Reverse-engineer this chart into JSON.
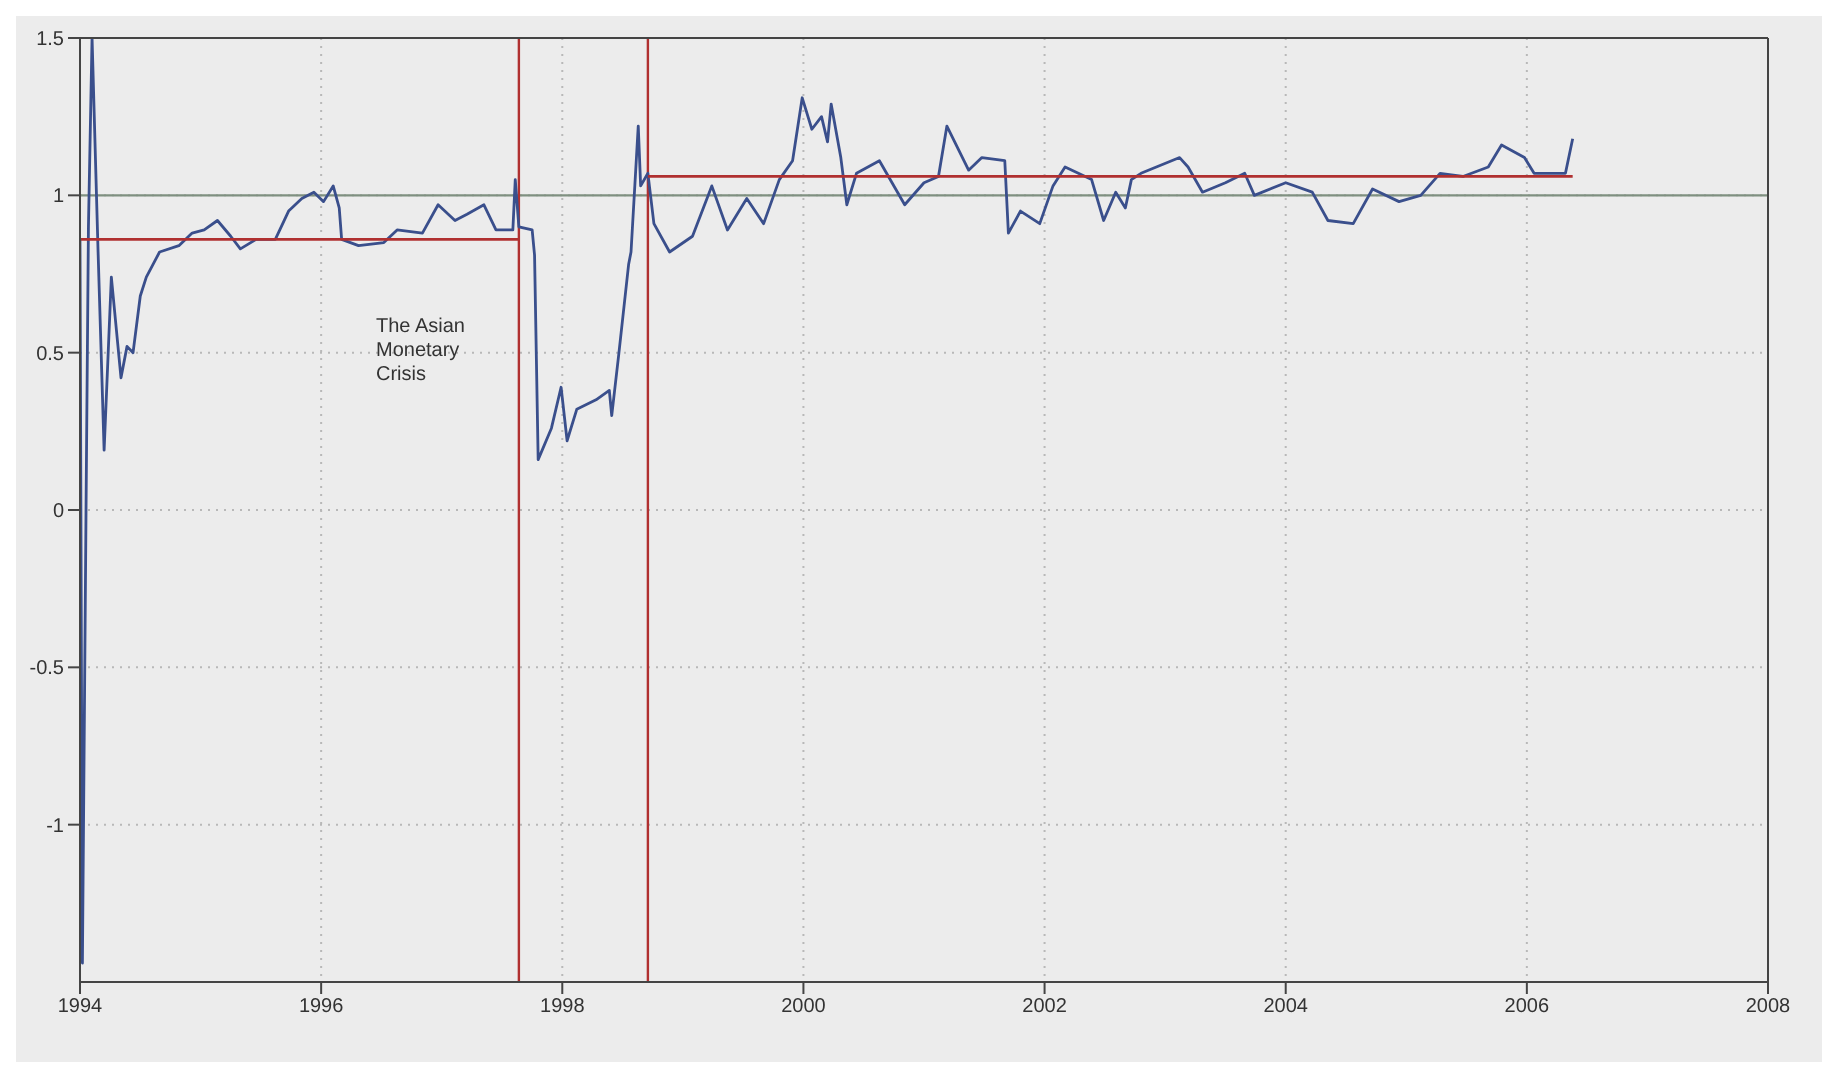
{
  "chart_data": {
    "type": "line",
    "x": [
      1994.0,
      1994.02,
      1994.05,
      1994.07,
      1994.1,
      1994.15,
      1994.2,
      1994.26,
      1994.34,
      1994.39,
      1994.44,
      1994.5,
      1994.55,
      1994.66,
      1994.82,
      1994.93,
      1995.03,
      1995.14,
      1995.25,
      1995.33,
      1995.46,
      1995.62,
      1995.73,
      1995.84,
      1995.94,
      1996.02,
      1996.1,
      1996.15,
      1996.17,
      1996.31,
      1996.52,
      1996.63,
      1996.84,
      1996.97,
      1997.11,
      1997.21,
      1997.35,
      1997.45,
      1997.59,
      1997.61,
      1997.64,
      1997.75,
      1997.77,
      1997.8,
      1997.91,
      1997.99,
      1998.04,
      1998.12,
      1998.28,
      1998.39,
      1998.41,
      1998.47,
      1998.55,
      1998.57,
      1998.63,
      1998.65,
      1998.71,
      1998.76,
      1998.89,
      1999.08,
      1999.24,
      1999.37,
      1999.53,
      1999.67,
      1999.8,
      1999.91,
      1999.99,
      2000.07,
      2000.15,
      2000.2,
      2000.23,
      2000.31,
      2000.36,
      2000.44,
      2000.63,
      2000.84,
      2001.0,
      2001.12,
      2001.19,
      2001.37,
      2001.48,
      2001.67,
      2001.7,
      2001.8,
      2001.96,
      2002.07,
      2002.17,
      2002.39,
      2002.49,
      2002.59,
      2002.67,
      2002.72,
      2002.8,
      2003.12,
      2003.19,
      2003.31,
      2003.5,
      2003.66,
      2003.74,
      2004.0,
      2004.22,
      2004.35,
      2004.56,
      2004.72,
      2004.94,
      2005.12,
      2005.28,
      2005.47,
      2005.68,
      2005.79,
      2005.98,
      2006.06,
      2006.32,
      2006.38
    ],
    "series": [
      {
        "color": "#3a4f8c",
        "values": [
          0.86,
          -1.44,
          0.0,
          0.9,
          1.5,
          0.82,
          0.19,
          0.74,
          0.42,
          0.52,
          0.5,
          0.68,
          0.74,
          0.82,
          0.84,
          0.88,
          0.89,
          0.92,
          0.87,
          0.83,
          0.86,
          0.86,
          0.95,
          0.99,
          1.01,
          0.98,
          1.03,
          0.96,
          0.86,
          0.84,
          0.85,
          0.89,
          0.88,
          0.97,
          0.92,
          0.94,
          0.97,
          0.89,
          0.89,
          1.05,
          0.9,
          0.89,
          0.81,
          0.16,
          0.26,
          0.39,
          0.22,
          0.32,
          0.35,
          0.38,
          0.3,
          0.5,
          0.78,
          0.82,
          1.22,
          1.03,
          1.07,
          0.91,
          0.82,
          0.87,
          1.03,
          0.89,
          0.99,
          0.91,
          1.05,
          1.11,
          1.31,
          1.21,
          1.25,
          1.17,
          1.29,
          1.12,
          0.97,
          1.07,
          1.11,
          0.97,
          1.04,
          1.06,
          1.22,
          1.08,
          1.12,
          1.11,
          0.88,
          0.95,
          0.91,
          1.03,
          1.09,
          1.05,
          0.92,
          1.01,
          0.96,
          1.05,
          1.07,
          1.12,
          1.09,
          1.01,
          1.04,
          1.07,
          1.0,
          1.04,
          1.01,
          0.92,
          0.91,
          1.02,
          0.98,
          1.0,
          1.07,
          1.06,
          1.09,
          1.16,
          1.12,
          1.07,
          1.07,
          1.18
        ]
      },
      {
        "type": "line",
        "color": "#b03030",
        "x": [
          1994.0,
          1997.64
        ],
        "values": [
          0.86,
          0.86
        ]
      },
      {
        "type": "line",
        "color": "#b03030",
        "x": [
          1998.71,
          2006.38
        ],
        "values": [
          1.06,
          1.06
        ]
      }
    ],
    "ref_lines": [
      {
        "axis": "y",
        "value": 1,
        "color": "#7f9080"
      },
      {
        "axis": "x",
        "value": 1997.64,
        "color": "#b03030"
      },
      {
        "axis": "x",
        "value": 1998.71,
        "color": "#b03030"
      }
    ],
    "annotations": [
      "The Asian Monetary Crisis"
    ],
    "xlim": [
      1994,
      2008
    ],
    "xticks": [
      1994,
      1996,
      1998,
      2000,
      2002,
      2004,
      2006,
      2008
    ],
    "ylim": [
      -1.5,
      1.5
    ],
    "yticks": [
      -1,
      -0.5,
      0,
      0.5,
      1,
      1.5
    ],
    "grid": true,
    "marker": "none",
    "line_style": "solid"
  }
}
